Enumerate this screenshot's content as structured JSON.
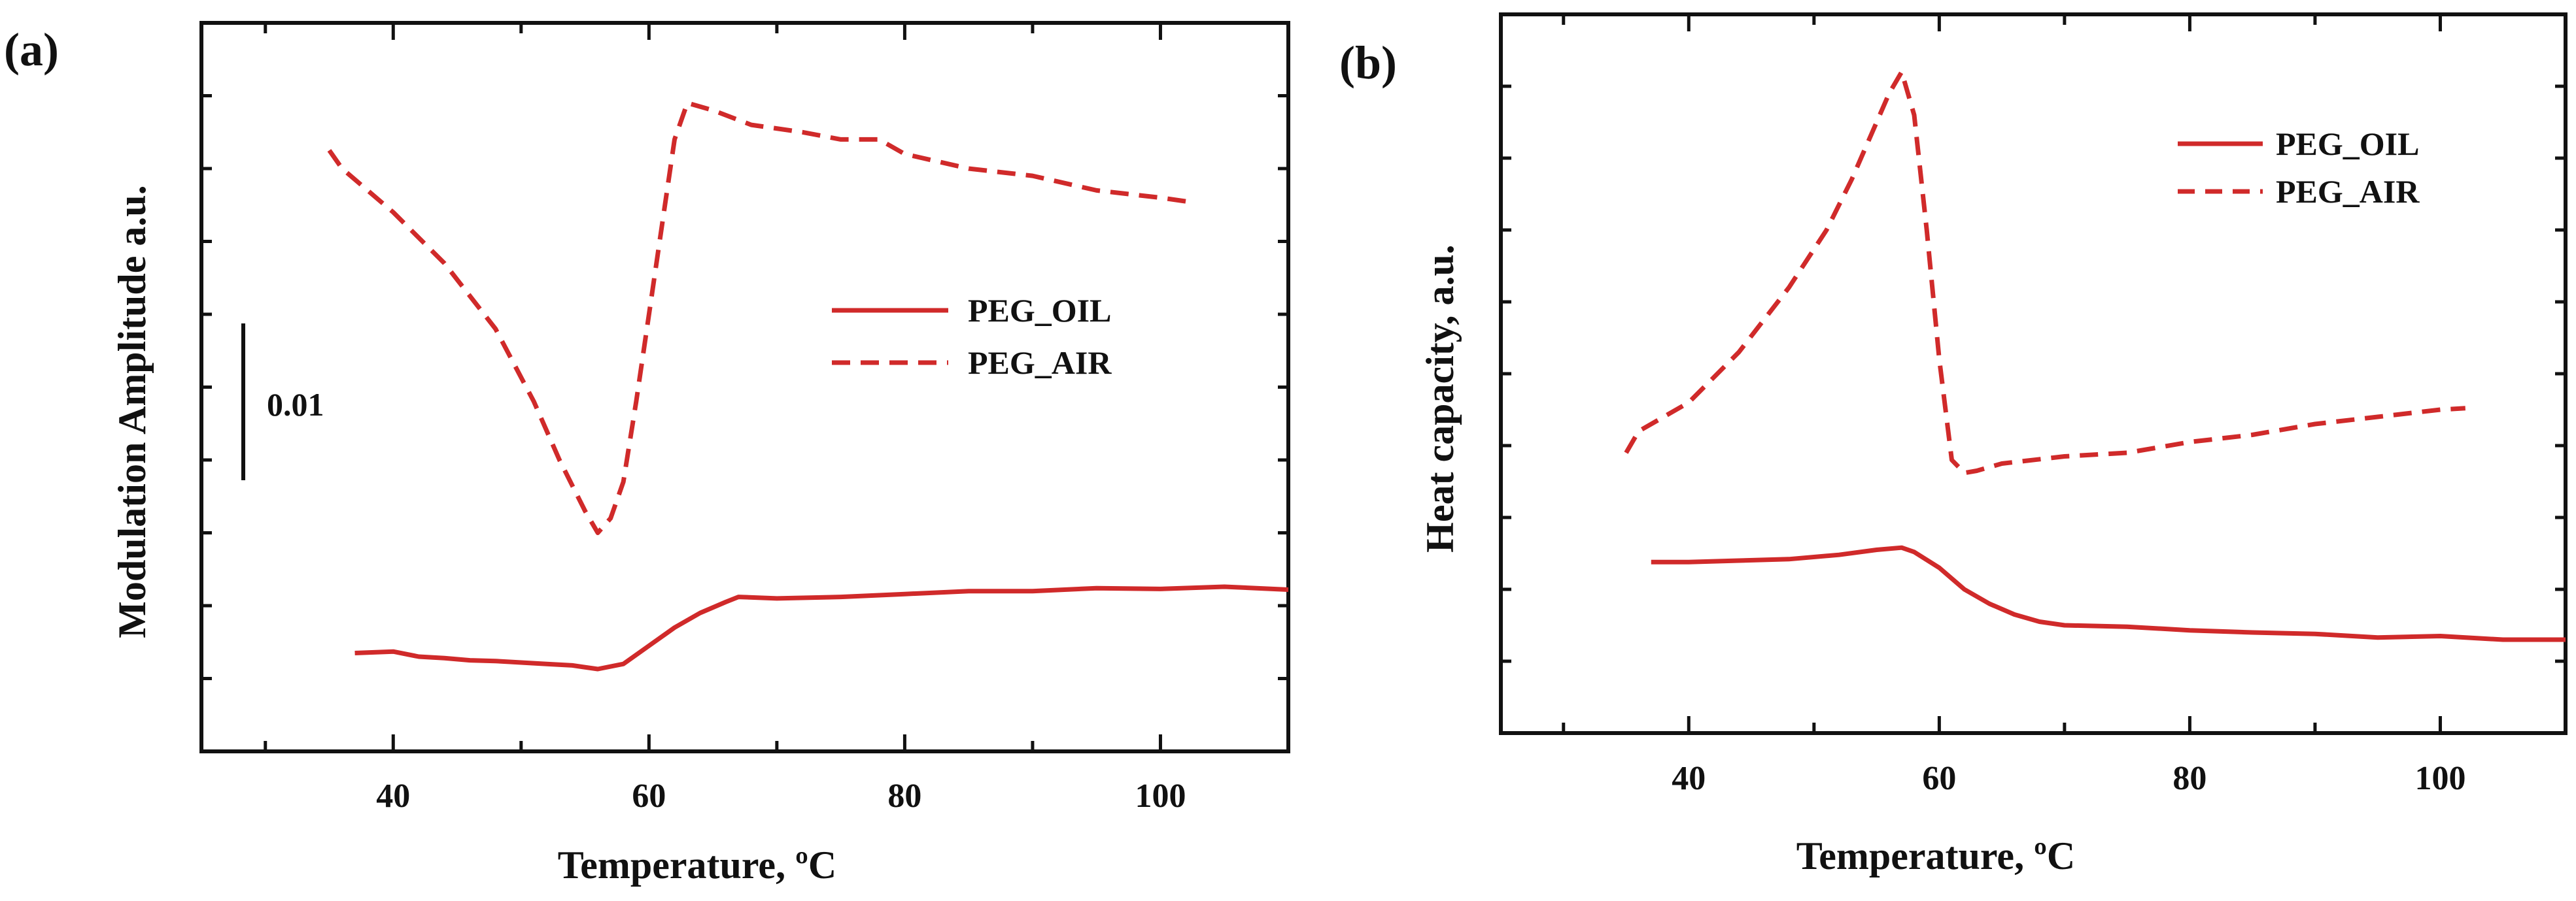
{
  "colors": {
    "series": "#d02a2a",
    "axis": "#111111"
  },
  "chart_data": [
    {
      "id": "a",
      "type": "line",
      "panel_label": "(a)",
      "xlabel": "Temperature, ºC",
      "ylabel": "Modulation Amplitude a.u.",
      "xlim": [
        25,
        110
      ],
      "ylim": [
        0,
        1
      ],
      "x_ticks": [
        30,
        40,
        50,
        60,
        70,
        80,
        90,
        100,
        110
      ],
      "x_tick_labels": [
        "40",
        "60",
        "80",
        "100"
      ],
      "x_tick_label_values": [
        40,
        60,
        80,
        100
      ],
      "y_ticks": [
        0.1,
        0.2,
        0.3,
        0.4,
        0.5,
        0.6,
        0.7,
        0.8,
        0.9
      ],
      "legend": {
        "position": "right",
        "entries": [
          "PEG_OIL",
          "PEG_AIR"
        ]
      },
      "scale_bar": {
        "label": "0.01",
        "from": 0.38,
        "to": 0.62
      },
      "series": [
        {
          "name": "PEG_OIL",
          "style": "solid",
          "x": [
            37,
            40,
            42,
            44,
            46,
            48,
            50,
            52,
            54,
            56,
            58,
            60,
            62,
            64,
            66,
            67,
            70,
            75,
            80,
            85,
            90,
            95,
            100,
            105,
            110
          ],
          "y": [
            0.135,
            0.137,
            0.13,
            0.128,
            0.125,
            0.124,
            0.122,
            0.12,
            0.118,
            0.113,
            0.12,
            0.145,
            0.17,
            0.19,
            0.205,
            0.212,
            0.21,
            0.212,
            0.216,
            0.22,
            0.22,
            0.224,
            0.223,
            0.226,
            0.222
          ]
        },
        {
          "name": "PEG_AIR",
          "style": "dashed",
          "x": [
            35,
            36,
            40,
            44,
            48,
            51,
            53,
            55,
            56,
            57,
            58,
            59,
            60,
            61,
            62,
            63,
            65,
            68,
            72,
            75,
            78,
            80,
            85,
            90,
            95,
            100,
            102
          ],
          "y": [
            0.825,
            0.8,
            0.74,
            0.67,
            0.58,
            0.48,
            0.4,
            0.33,
            0.3,
            0.32,
            0.37,
            0.48,
            0.6,
            0.72,
            0.84,
            0.89,
            0.88,
            0.86,
            0.85,
            0.84,
            0.84,
            0.82,
            0.8,
            0.79,
            0.77,
            0.76,
            0.755
          ]
        }
      ]
    },
    {
      "id": "b",
      "type": "line",
      "panel_label": "(b)",
      "xlabel": "Temperature, ºC",
      "ylabel": "Heat capacity, a.u.",
      "xlim": [
        25,
        110
      ],
      "ylim": [
        0,
        1
      ],
      "x_ticks": [
        30,
        40,
        50,
        60,
        70,
        80,
        90,
        100,
        110
      ],
      "x_tick_labels": [
        "40",
        "60",
        "80",
        "100"
      ],
      "x_tick_label_values": [
        40,
        60,
        80,
        100
      ],
      "y_ticks": [
        0.1,
        0.2,
        0.3,
        0.4,
        0.5,
        0.6,
        0.7,
        0.8,
        0.9
      ],
      "legend": {
        "position": "top-right",
        "entries": [
          "PEG_OIL",
          "PEG_AIR"
        ]
      },
      "series": [
        {
          "name": "PEG_OIL",
          "style": "solid",
          "x": [
            37,
            40,
            44,
            48,
            52,
            55,
            57,
            58,
            60,
            62,
            64,
            66,
            68,
            70,
            75,
            80,
            85,
            90,
            95,
            100,
            105,
            110
          ],
          "y": [
            0.238,
            0.238,
            0.24,
            0.242,
            0.248,
            0.255,
            0.258,
            0.252,
            0.23,
            0.2,
            0.18,
            0.165,
            0.155,
            0.15,
            0.148,
            0.143,
            0.14,
            0.138,
            0.133,
            0.135,
            0.13,
            0.13
          ]
        },
        {
          "name": "PEG_AIR",
          "style": "dashed",
          "x": [
            35,
            36,
            40,
            44,
            48,
            51,
            53,
            55,
            56,
            57,
            58,
            59,
            60,
            61,
            62,
            63,
            65,
            70,
            75,
            80,
            85,
            90,
            95,
            100,
            102
          ],
          "y": [
            0.39,
            0.42,
            0.46,
            0.53,
            0.62,
            0.7,
            0.77,
            0.85,
            0.89,
            0.92,
            0.86,
            0.7,
            0.52,
            0.38,
            0.362,
            0.365,
            0.375,
            0.385,
            0.39,
            0.405,
            0.415,
            0.43,
            0.44,
            0.45,
            0.452
          ]
        }
      ]
    }
  ]
}
